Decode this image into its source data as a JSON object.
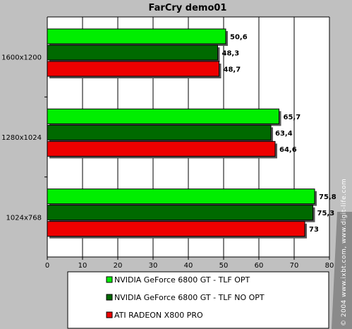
{
  "chart_data": {
    "type": "bar",
    "orientation": "horizontal",
    "title": "FarCry demo01",
    "categories": [
      "1600x1200",
      "1280x1024",
      "1024x768"
    ],
    "series": [
      {
        "name": "NVIDIA GeForce 6800 GT - TLF OPT",
        "color": "#00ee00",
        "values": [
          50.6,
          65.7,
          75.8
        ],
        "labels": [
          "50,6",
          "65,7",
          "75,8"
        ]
      },
      {
        "name": "NVIDIA GeForce 6800 GT - TLF NO OPT",
        "color": "#006a00",
        "values": [
          48.3,
          63.4,
          75.3
        ],
        "labels": [
          "48,3",
          "63,4",
          "75,3"
        ]
      },
      {
        "name": "ATI RADEON X800 PRO",
        "color": "#ee0000",
        "values": [
          48.7,
          64.6,
          73
        ],
        "labels": [
          "48,7",
          "64,6",
          "73"
        ]
      }
    ],
    "xlim": [
      0,
      80
    ],
    "xticks": [
      0,
      10,
      20,
      30,
      40,
      50,
      60,
      70,
      80
    ],
    "grid": true,
    "legend_position": "bottom"
  },
  "watermark": "© 2004 www.ixbt.com, www.digit-life.com",
  "colors": {
    "background": "#c0c0c0",
    "plot_area": "#ffffff",
    "grid": "#000000"
  }
}
